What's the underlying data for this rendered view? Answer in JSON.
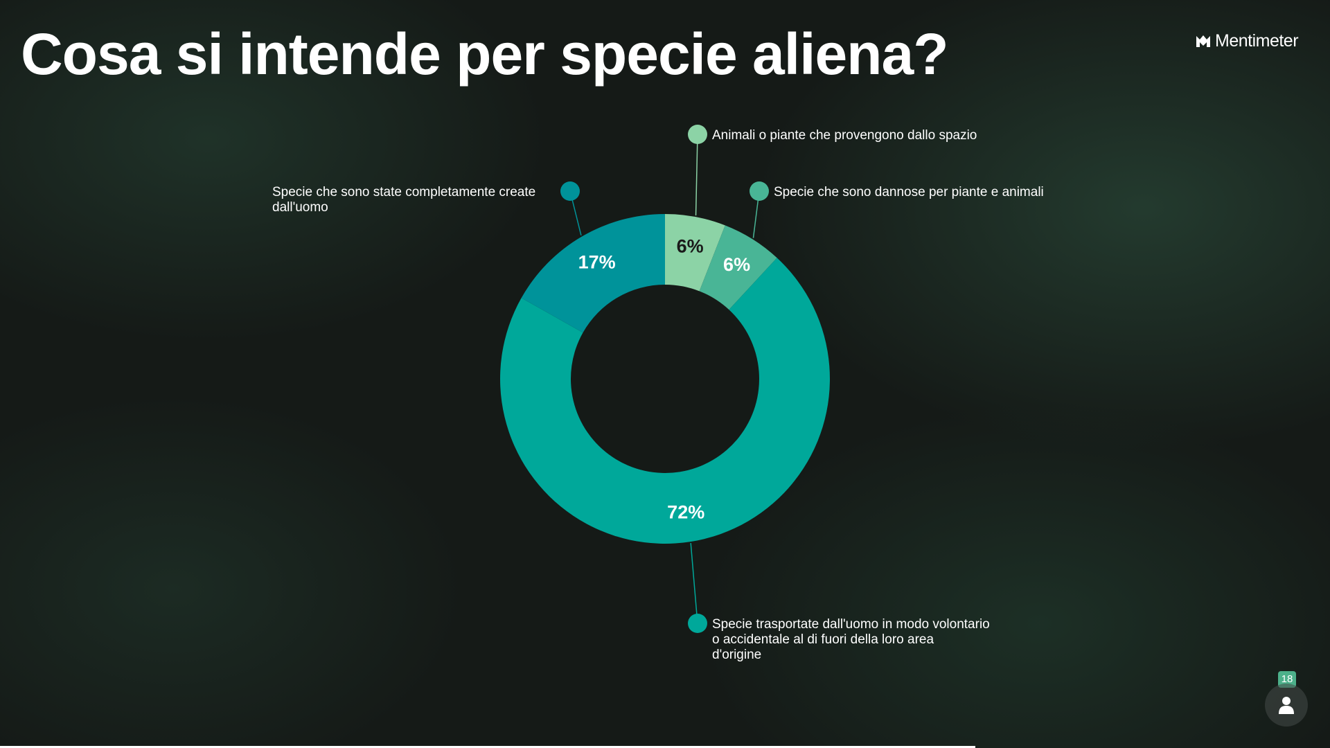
{
  "title": "Cosa si intende per specie aliena?",
  "brand": {
    "name": "Mentimeter",
    "icon": "mentimeter-logo-icon"
  },
  "participants": {
    "count": "18",
    "icon": "person-icon"
  },
  "colors": {
    "accent": "#4cb08a",
    "slice_1": "#8cd3a6",
    "slice_2": "#49b596",
    "slice_3": "#00a89a",
    "slice_4": "#00939a"
  },
  "chart_data": {
    "type": "pie",
    "style": "donut",
    "slices": [
      {
        "name": "Animali o piante che provengono dallo spazio",
        "value": 6,
        "label": "6%",
        "color": "#8cd3a6",
        "label_color": "#1a1a1a"
      },
      {
        "name": "Specie che sono dannose per piante e animali",
        "value": 6,
        "label": "6%",
        "color": "#49b596",
        "label_color": "#ffffff"
      },
      {
        "name": "Specie trasportate dall'uomo in modo volontario o accidentale al di fuori della loro area d'origine",
        "value": 72,
        "label": "72%",
        "color": "#00a89a",
        "label_color": "#ffffff"
      },
      {
        "name": "Specie che sono state completamente create dall'uomo",
        "value": 17,
        "label": "17%",
        "color": "#00939a",
        "label_color": "#ffffff"
      }
    ]
  }
}
